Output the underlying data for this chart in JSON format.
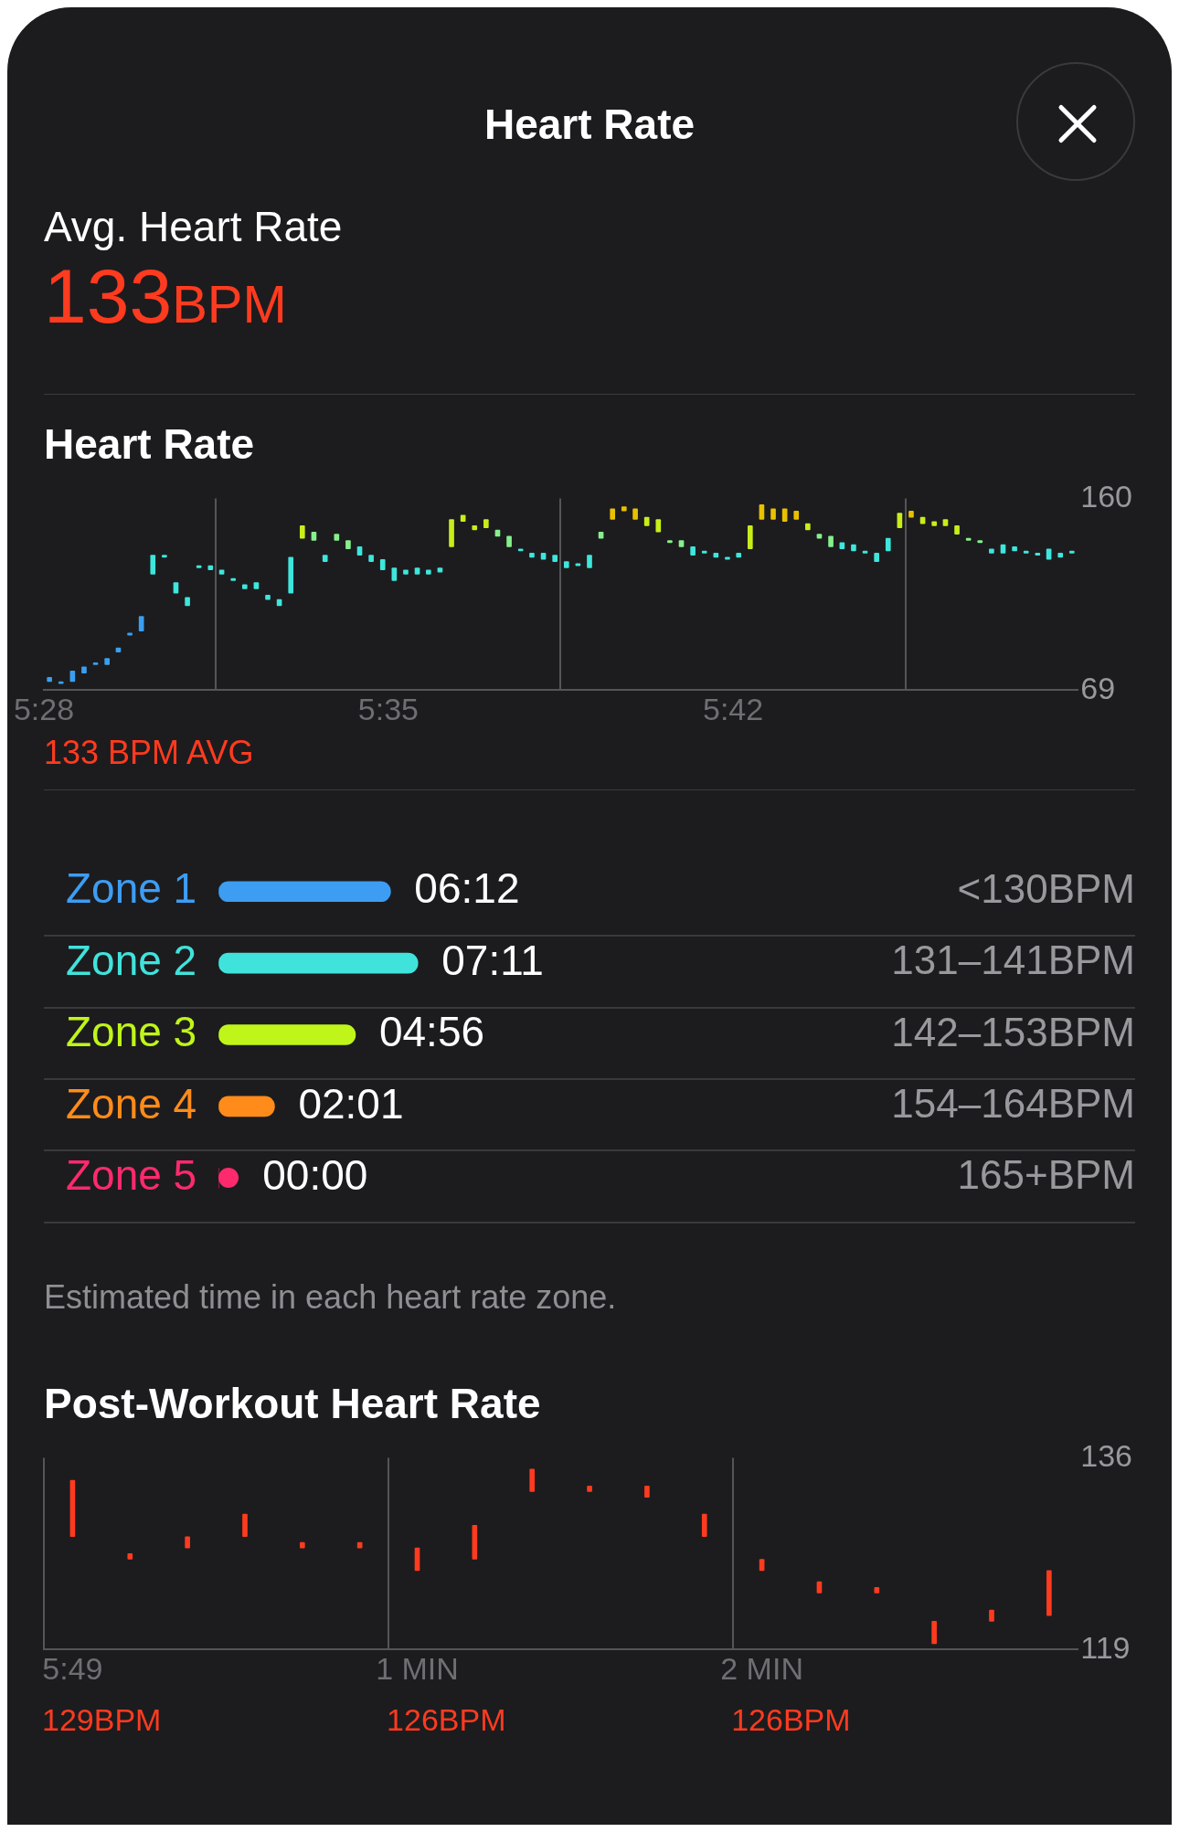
{
  "chart_data": [
    {
      "type": "other",
      "title": "Heart Rate",
      "subtitle": "Avg. Heart Rate",
      "annotations": [
        "133BPM"
      ]
    },
    {
      "type": "bar",
      "title": "Heart Rate",
      "x": [
        5.4686,
        5.4725,
        5.4764,
        5.4803,
        5.4842,
        5.4881,
        5.4919,
        5.4958,
        5.4997,
        5.5036,
        5.5075,
        5.5114,
        5.5153,
        5.5192,
        5.5231,
        5.5269,
        5.5308,
        5.5347,
        5.5386,
        5.5425,
        5.5464,
        5.5503,
        5.5542,
        5.5581,
        5.5619,
        5.5658,
        5.5697,
        5.5736,
        5.5775,
        5.5814,
        5.5853,
        5.5892,
        5.5931,
        5.5969,
        5.6008,
        5.6047,
        5.6086,
        5.6125,
        5.6164,
        5.6203,
        5.6242,
        5.6281,
        5.6319,
        5.6358,
        5.6397,
        5.6436,
        5.6475,
        5.6514,
        5.6553,
        5.6592,
        5.6631,
        5.6669,
        5.6708,
        5.6747,
        5.6786,
        5.6825,
        5.6864,
        5.6903,
        5.6942,
        5.6981,
        5.7019,
        5.7058,
        5.7097,
        5.7136,
        5.7175,
        5.7214,
        5.7253,
        5.7292,
        5.7331,
        5.7369,
        5.7408,
        5.7447,
        5.7486,
        5.7525,
        5.7564,
        5.7603,
        5.7642,
        5.7681,
        5.7719,
        5.7758,
        5.7797,
        5.7836,
        5.7875,
        5.7914,
        5.7953,
        5.7992,
        5.8031,
        5.8069,
        5.8108,
        5.8147
      ],
      "base": [
        73,
        72,
        73,
        77,
        81,
        81,
        87,
        95,
        97,
        124,
        132,
        115,
        109,
        127,
        126,
        124,
        121,
        117,
        117,
        112,
        109,
        115,
        141,
        140,
        130,
        140,
        136,
        133,
        130,
        126,
        121,
        124,
        124,
        124,
        125,
        137,
        149,
        145,
        146,
        142,
        137,
        135,
        132,
        131,
        130,
        127,
        128,
        127,
        141,
        150,
        154,
        150,
        147,
        144,
        139,
        137,
        133,
        134,
        132,
        131,
        132,
        136,
        150,
        150,
        149,
        150,
        145,
        141,
        137,
        136,
        135,
        134,
        130,
        135,
        146,
        151,
        148,
        147,
        147,
        143,
        140,
        139,
        134,
        134,
        135,
        134,
        133,
        131,
        132,
        134
      ],
      "values": [
        2,
        1,
        5,
        3,
        1,
        3,
        2,
        1,
        7,
        9,
        1,
        5,
        4,
        1,
        2,
        2,
        1,
        2,
        3,
        2,
        3,
        17,
        6,
        4,
        3,
        3,
        4,
        4,
        3,
        5,
        6,
        2,
        3,
        2,
        2,
        13,
        3,
        2,
        4,
        3,
        5,
        1,
        2,
        3,
        3,
        3,
        1,
        6,
        3,
        5,
        2,
        5,
        4,
        6,
        1,
        3,
        4,
        1,
        2,
        1,
        2,
        11,
        7,
        5,
        6,
        4,
        3,
        2,
        5,
        3,
        3,
        1,
        4,
        6,
        7,
        3,
        3,
        2,
        3,
        4,
        1,
        1,
        2,
        4,
        2,
        1,
        1,
        5,
        2,
        1
      ],
      "colors": [
        "#3a9ff0",
        "#3a9ff0",
        "#3a9ff0",
        "#3a9ff0",
        "#3a9ff0",
        "#3a9ff0",
        "#3a9ff0",
        "#3a9ff0",
        "#3a9ff0",
        "#3ee6dc",
        "#3ee6dc",
        "#3ee6dc",
        "#3ee6dc",
        "#3ee6dc",
        "#3ee6dc",
        "#3ee6dc",
        "#3ee6dc",
        "#3ee6dc",
        "#3ee6dc",
        "#3ee6dc",
        "#3ee6dc",
        "#3ee6dc",
        "#c8ee1a",
        "#86f08c",
        "#3ee6dc",
        "#86f08c",
        "#86f08c",
        "#3ee6dc",
        "#3ee6dc",
        "#3ee6dc",
        "#3ee6dc",
        "#3ee6dc",
        "#3ee6dc",
        "#3ee6dc",
        "#3ee6dc",
        "#c8ee1a",
        "#c8ee1a",
        "#c8ee1a",
        "#c8ee1a",
        "#86f08c",
        "#86f08c",
        "#3ee6dc",
        "#3ee6dc",
        "#3ee6dc",
        "#3ee6dc",
        "#3ee6dc",
        "#3ee6dc",
        "#3ee6dc",
        "#86f08c",
        "#e8c000",
        "#e8c000",
        "#e8c000",
        "#c8ee1a",
        "#c8ee1a",
        "#86f08c",
        "#86f08c",
        "#3ee6dc",
        "#3ee6dc",
        "#3ee6dc",
        "#3ee6dc",
        "#3ee6dc",
        "#c8ee1a",
        "#e8c000",
        "#e8c000",
        "#e8c000",
        "#e8c000",
        "#c8ee1a",
        "#86f08c",
        "#86f08c",
        "#3ee6dc",
        "#3ee6dc",
        "#3ee6dc",
        "#3ee6dc",
        "#3ee6dc",
        "#c8ee1a",
        "#e8c000",
        "#c8ee1a",
        "#c8ee1a",
        "#c8ee1a",
        "#c8ee1a",
        "#86f08c",
        "#86f08c",
        "#3ee6dc",
        "#3ee6dc",
        "#3ee6dc",
        "#3ee6dc",
        "#3ee6dc",
        "#3ee6dc",
        "#3ee6dc",
        "#3ee6dc"
      ],
      "xlim": [
        5.4667,
        5.8167
      ],
      "xticks": [
        {
          "value": 5.4667,
          "label": "5:28"
        },
        {
          "value": 5.5833,
          "label": "5:35"
        },
        {
          "value": 5.7,
          "label": "5:42"
        }
      ],
      "ylim": [
        69,
        160
      ],
      "yticks": [
        69,
        160
      ],
      "grid": "x",
      "annotations": [
        "133 BPM AVG"
      ]
    },
    {
      "type": "bar",
      "orientation": "horizontal",
      "categories": [
        "Zone 1",
        "Zone 2",
        "Zone 3",
        "Zone 4",
        "Zone 5"
      ],
      "values": [
        6.2,
        7.1833,
        4.9333,
        2.0167,
        0
      ],
      "value_labels": [
        "06:12",
        "07:11",
        "04:56",
        "02:01",
        "00:00"
      ],
      "colors": [
        "#3d9df3",
        "#40e3dc",
        "#c0f51a",
        "#ff8c1a",
        "#ff2a6d"
      ],
      "tick_labels": "y",
      "grid": "y",
      "annotations": [
        "<130BPM",
        "131–141BPM",
        "142–153BPM",
        "154–164BPM",
        "165+BPM",
        "Estimated time in each heart rate zone."
      ]
    },
    {
      "type": "bar",
      "title": "Post-Workout Heart Rate",
      "categories": [
        "5:49",
        null,
        null,
        null,
        null,
        null,
        "1 MIN",
        null,
        null,
        null,
        null,
        null,
        "2 MIN",
        null,
        null,
        null,
        null,
        null
      ],
      "base": [
        129,
        127,
        128,
        129,
        128,
        128,
        126,
        127,
        133,
        133,
        132.5,
        129,
        126,
        124,
        124,
        119.5,
        121.5,
        122
      ],
      "values": [
        5,
        0.5,
        1,
        2,
        0.5,
        0.5,
        2,
        3,
        2,
        0.5,
        1,
        2,
        1,
        1,
        0.5,
        2,
        1,
        4
      ],
      "color": "#ff3b1f",
      "ylim": [
        119,
        136
      ],
      "yticks": [
        119,
        136
      ],
      "grid": "x",
      "annotations": [
        "129BPM",
        "126BPM",
        "126BPM"
      ]
    }
  ]
}
